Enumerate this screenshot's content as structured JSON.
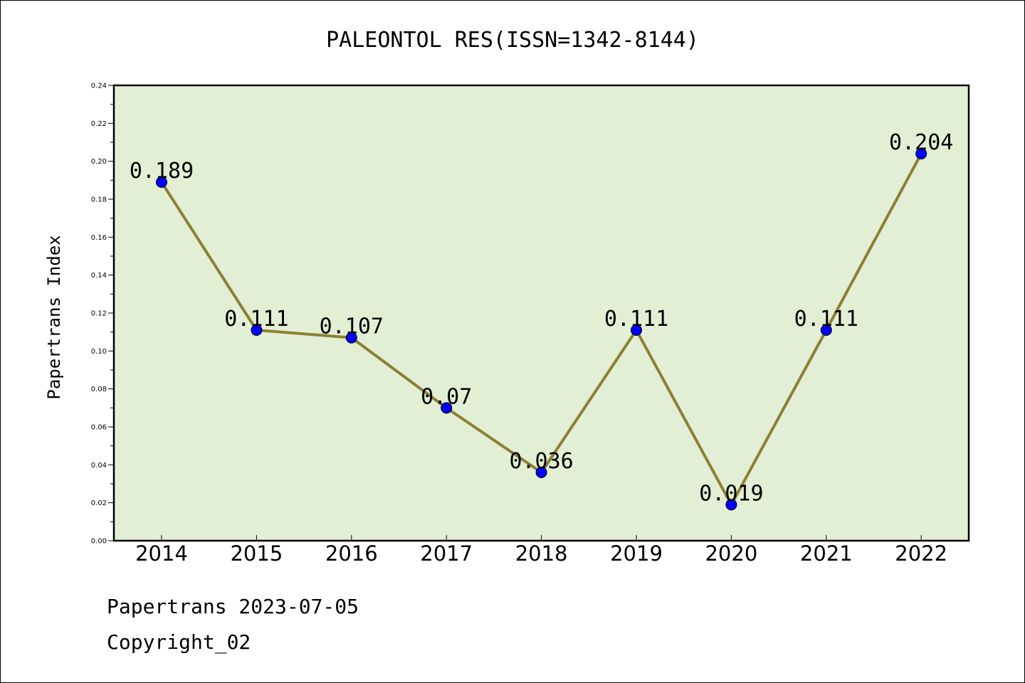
{
  "chart_data": {
    "type": "line",
    "title": "PALEONTOL RES(ISSN=1342-8144)",
    "xlabel": "",
    "ylabel": "Papertrans Index",
    "categories": [
      "2014",
      "2015",
      "2016",
      "2017",
      "2018",
      "2019",
      "2020",
      "2021",
      "2022"
    ],
    "series": [
      {
        "values": [
          0.189,
          0.111,
          0.107,
          0.07,
          0.036,
          0.111,
          0.019,
          0.111,
          0.204
        ],
        "labels": [
          "0.189",
          "0.111",
          "0.107",
          "0.07",
          "0.036",
          "0.111",
          "0.019",
          "0.111",
          "0.204"
        ]
      }
    ],
    "ylim": [
      0,
      0.24
    ],
    "yticks": [
      "0.00",
      "0.02",
      "0.04",
      "0.06",
      "0.08",
      "0.10",
      "0.12",
      "0.14",
      "0.16",
      "0.18",
      "0.20",
      "0.22",
      "0.24"
    ],
    "grid": false,
    "colors": {
      "plot_background": "#e2efd5",
      "line": "#8b8035",
      "marker": "#0000ff"
    }
  },
  "footer": {
    "date_line": "Papertrans 2023-07-05",
    "copyright": "Copyright_02"
  }
}
